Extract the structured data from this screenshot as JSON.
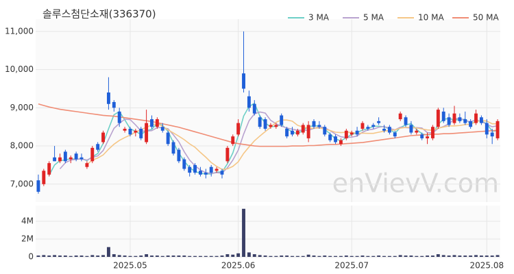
{
  "chart_data": {
    "type": "candlestick",
    "title": "솔루스첨단소재(336370)",
    "watermark": "enVievV.com",
    "up_color": "#e02424",
    "down_color": "#1f5fd8",
    "open": [
      7100,
      7000,
      7250,
      7700,
      7600,
      7850,
      7650,
      7800,
      7700,
      7450,
      7600,
      8050,
      8100,
      9400,
      9150,
      8900,
      8400,
      8450,
      8350,
      8450,
      8100,
      8700,
      8500,
      8500,
      8350,
      8100,
      7900,
      7650,
      7450,
      7500,
      7350,
      7300,
      7450,
      7350,
      7350,
      7600,
      8050,
      8300,
      9900,
      9300,
      9100,
      8750,
      8700,
      8500,
      8500,
      8800,
      8450,
      8400,
      8300,
      8350,
      8200,
      8650,
      8550,
      8500,
      8300,
      8250,
      8050,
      8200,
      8300,
      8400,
      8450,
      8500,
      8550,
      8650,
      8450,
      8500,
      8350,
      8700,
      8750,
      8550,
      8350,
      8300,
      8200,
      8200,
      8500,
      8900,
      8750,
      8600,
      8750,
      8700,
      8650,
      8600,
      8750,
      8600,
      8350,
      8200
    ],
    "high": [
      7250,
      7400,
      7600,
      8000,
      7800,
      7900,
      7750,
      7850,
      7800,
      7600,
      8000,
      8100,
      8400,
      9800,
      9200,
      9000,
      8500,
      8500,
      8450,
      8500,
      8950,
      8800,
      8750,
      8600,
      8400,
      8150,
      7950,
      7700,
      7500,
      7550,
      7450,
      7400,
      7500,
      7450,
      7400,
      8000,
      8300,
      8700,
      11000,
      9450,
      9200,
      8800,
      8750,
      8600,
      8600,
      8850,
      8500,
      8500,
      8450,
      8600,
      8650,
      8700,
      8650,
      8550,
      8350,
      8300,
      8200,
      8450,
      8400,
      8500,
      8650,
      8550,
      8600,
      8750,
      8550,
      8550,
      8400,
      8900,
      8800,
      8650,
      8450,
      8350,
      8350,
      8550,
      9000,
      9000,
      8850,
      9050,
      8850,
      8900,
      8700,
      8950,
      8800,
      8700,
      8450,
      8700
    ],
    "low": [
      6750,
      6950,
      7200,
      7600,
      7550,
      7550,
      7550,
      7600,
      7600,
      7400,
      7550,
      7850,
      8050,
      8950,
      8900,
      8500,
      8350,
      8250,
      8250,
      8150,
      8050,
      8450,
      8450,
      8350,
      8000,
      7750,
      7550,
      7350,
      7200,
      7250,
      7200,
      7150,
      7200,
      7300,
      7150,
      7550,
      8000,
      8250,
      9400,
      8900,
      8800,
      8450,
      8400,
      8450,
      8450,
      8500,
      8200,
      8250,
      8250,
      8300,
      8100,
      8450,
      8450,
      8250,
      8100,
      8050,
      8000,
      8150,
      8250,
      8250,
      8400,
      8400,
      8450,
      8550,
      8350,
      8300,
      8200,
      8650,
      8500,
      8300,
      8300,
      8150,
      8050,
      8150,
      8450,
      8600,
      8500,
      8550,
      8600,
      8550,
      8450,
      8550,
      8550,
      8200,
      8050,
      8150
    ],
    "close": [
      6800,
      7350,
      7550,
      7600,
      7700,
      7600,
      7700,
      7650,
      7650,
      7550,
      7950,
      7900,
      8350,
      9100,
      9000,
      8600,
      8450,
      8300,
      8400,
      8200,
      8600,
      8500,
      8700,
      8400,
      8050,
      7800,
      7600,
      7400,
      7300,
      7300,
      7250,
      7250,
      7300,
      7400,
      7250,
      7950,
      8250,
      8600,
      9500,
      9000,
      8850,
      8500,
      8450,
      8550,
      8550,
      8550,
      8250,
      8300,
      8400,
      8550,
      8550,
      8500,
      8500,
      8300,
      8150,
      8100,
      8150,
      8400,
      8350,
      8300,
      8600,
      8450,
      8500,
      8600,
      8400,
      8350,
      8250,
      8850,
      8550,
      8350,
      8400,
      8200,
      8250,
      8500,
      8950,
      8650,
      8550,
      8850,
      8650,
      8600,
      8500,
      8850,
      8600,
      8300,
      8250,
      8650
    ],
    "ma": [
      {
        "name": "3 MA",
        "color": "#6ccfc6"
      },
      {
        "name": "5 MA",
        "color": "#b8a2cf"
      },
      {
        "name": "10 MA",
        "color": "#f5c686"
      },
      {
        "name": "50 MA",
        "color": "#f08c74",
        "values": [
          9100,
          9060,
          9020,
          8990,
          8960,
          8940,
          8920,
          8900,
          8880,
          8860,
          8840,
          8820,
          8800,
          8790,
          8780,
          8760,
          8740,
          8720,
          8700,
          8680,
          8660,
          8640,
          8610,
          8580,
          8550,
          8520,
          8490,
          8450,
          8410,
          8370,
          8330,
          8290,
          8250,
          8210,
          8170,
          8130,
          8090,
          8060,
          8040,
          8020,
          8000,
          7990,
          7990,
          7990,
          7990,
          7990,
          7990,
          8000,
          8000,
          8000,
          8010,
          8010,
          8020,
          8030,
          8040,
          8040,
          8050,
          8060,
          8070,
          8080,
          8090,
          8110,
          8130,
          8150,
          8170,
          8190,
          8210,
          8230,
          8250,
          8270,
          8280,
          8290,
          8300,
          8310,
          8310,
          8320,
          8320,
          8330,
          8340,
          8350,
          8360,
          8370,
          8380,
          8390,
          8400,
          8410
        ]
      }
    ],
    "xlim": [
      -0.5,
      85.5
    ],
    "xticks": [
      {
        "value": 17,
        "label": "2025.05"
      },
      {
        "value": 37,
        "label": "2025.06"
      },
      {
        "value": 58,
        "label": "2025.07"
      },
      {
        "value": 83,
        "label": "2025.08"
      }
    ],
    "ylim": [
      6530,
      11320
    ],
    "yticks": [
      {
        "value": 7000,
        "label": "7,000"
      },
      {
        "value": 8000,
        "label": "8,000"
      },
      {
        "value": 9000,
        "label": "9,000"
      },
      {
        "value": 10000,
        "label": "10,000"
      },
      {
        "value": 11000,
        "label": "11,000"
      }
    ],
    "volume": {
      "color": "#3a3f66",
      "values": [
        150000,
        200000,
        150000,
        200000,
        150000,
        150000,
        100000,
        150000,
        150000,
        100000,
        200000,
        150000,
        200000,
        1100000,
        300000,
        200000,
        150000,
        100000,
        100000,
        150000,
        300000,
        150000,
        150000,
        100000,
        150000,
        150000,
        150000,
        150000,
        100000,
        100000,
        100000,
        100000,
        100000,
        100000,
        150000,
        300000,
        250000,
        400000,
        5400000,
        500000,
        300000,
        200000,
        150000,
        100000,
        100000,
        150000,
        150000,
        100000,
        100000,
        100000,
        250000,
        150000,
        100000,
        150000,
        100000,
        100000,
        100000,
        150000,
        100000,
        100000,
        150000,
        100000,
        100000,
        150000,
        100000,
        100000,
        100000,
        200000,
        150000,
        150000,
        100000,
        100000,
        150000,
        150000,
        300000,
        200000,
        150000,
        200000,
        150000,
        150000,
        150000,
        200000,
        150000,
        150000,
        150000,
        200000
      ],
      "ylim": [
        0,
        5770000
      ],
      "yticks": [
        {
          "value": 0,
          "label": "0"
        },
        {
          "value": 2000000,
          "label": "2M"
        },
        {
          "value": 4000000,
          "label": "4M"
        }
      ]
    }
  }
}
